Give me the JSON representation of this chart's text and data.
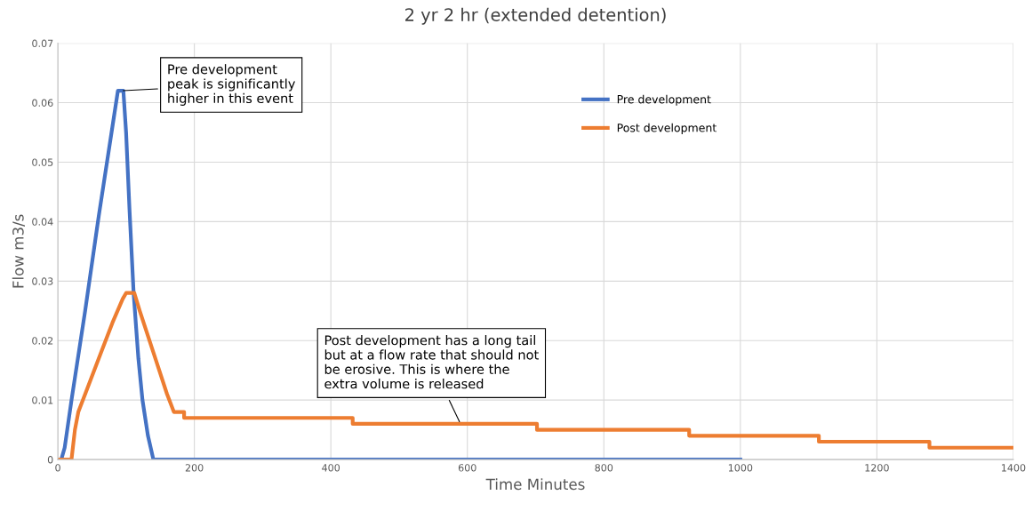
{
  "chart_data": {
    "type": "line",
    "title": "2 yr 2 hr (extended detention)",
    "xlabel": "Time Minutes",
    "ylabel": "Flow m3/s",
    "xlim": [
      0,
      1400
    ],
    "xticks": [
      0,
      200,
      400,
      600,
      800,
      1000,
      1200,
      1400
    ],
    "ylim": [
      0,
      0.07
    ],
    "yticks": [
      0,
      0.01,
      0.02,
      0.03,
      0.04,
      0.05,
      0.06,
      0.07
    ],
    "grid": true,
    "legend": "top right",
    "marker": "none",
    "line_style": "solid",
    "series": [
      {
        "name": "Pre development",
        "color": "#4472c4",
        "x": [
          0,
          5,
          10,
          20,
          40,
          60,
          80,
          88,
          96,
          100,
          105,
          111,
          118,
          124,
          132,
          140,
          1000
        ],
        "values": [
          0,
          0,
          0.002,
          0.01,
          0.025,
          0.041,
          0.056,
          0.062,
          0.062,
          0.055,
          0.042,
          0.028,
          0.017,
          0.01,
          0.004,
          0,
          0
        ]
      },
      {
        "name": "Post development",
        "color": "#ed7d31",
        "x": [
          0,
          20,
          25,
          30,
          40,
          60,
          80,
          95,
          100,
          112,
          120,
          140,
          160,
          170,
          185,
          185,
          432,
          432,
          702,
          702,
          925,
          925,
          1115,
          1115,
          1277,
          1277,
          1400
        ],
        "values": [
          0,
          0,
          0.005,
          0.008,
          0.011,
          0.017,
          0.023,
          0.027,
          0.028,
          0.028,
          0.025,
          0.018,
          0.011,
          0.008,
          0.008,
          0.007,
          0.007,
          0.006,
          0.006,
          0.005,
          0.005,
          0.004,
          0.004,
          0.003,
          0.003,
          0.002,
          0.002
        ]
      }
    ],
    "annotations": [
      {
        "text": "Pre development\npeak is significantly\nhigher in this event",
        "x": 92,
        "y": 0.062
      },
      {
        "text": "Post development has a long tail\nbut at a flow rate that should not\nbe erosive. This is where the\nextra volume is released",
        "x": 590,
        "y": 0.006
      }
    ]
  }
}
